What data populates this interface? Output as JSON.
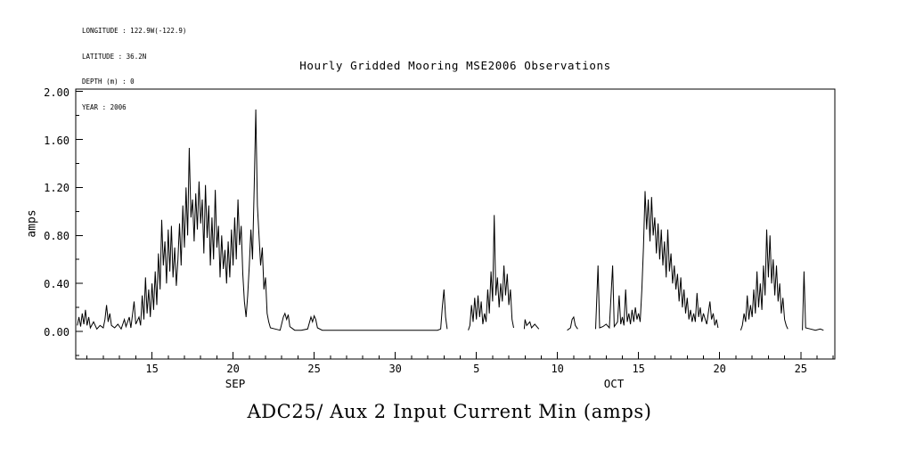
{
  "header": {
    "meta_lines": [
      "LONGITUDE : 122.9W(-122.9)",
      "LATITUDE : 36.2N",
      "DEPTH (m) : 0",
      "YEAR : 2006"
    ]
  },
  "title": "Hourly Gridded Mooring MSE2006 Observations",
  "footer_title": "ADC25/ Aux 2 Input Current Min (amps)",
  "chart_data": {
    "type": "line",
    "title": "Hourly Gridded Mooring MSE2006 Observations",
    "series_name": "ADC25/ Aux 2 Input Current Min (amps)",
    "ylabel": "amps",
    "line_color": "#000000",
    "grid": false,
    "legend": "none",
    "x_axis": {
      "unit": "days since 2006-09-01",
      "domain": [
        10.3,
        57.1
      ],
      "major_ticks": [
        {
          "day": 15,
          "label": "15"
        },
        {
          "day": 20,
          "label": "20"
        },
        {
          "day": 25,
          "label": "25"
        },
        {
          "day": 30,
          "label": "30"
        },
        {
          "day": 35,
          "label": "5"
        },
        {
          "day": 40,
          "label": "10"
        },
        {
          "day": 45,
          "label": "15"
        },
        {
          "day": 50,
          "label": "20"
        },
        {
          "day": 55,
          "label": "25"
        }
      ],
      "minor_tick_interval_days": 1,
      "month_labels": [
        {
          "day": 20.2,
          "label": "SEP"
        },
        {
          "day": 43.5,
          "label": "OCT"
        }
      ]
    },
    "y_axis": {
      "domain": [
        -0.23,
        2.02
      ],
      "major_ticks": [
        {
          "value": 0.0,
          "label": "0.00"
        },
        {
          "value": 0.4,
          "label": "0.40"
        },
        {
          "value": 0.8,
          "label": "0.80"
        },
        {
          "value": 1.2,
          "label": "1.20"
        },
        {
          "value": 1.6,
          "label": "1.60"
        },
        {
          "value": 2.0,
          "label": "2.00"
        }
      ],
      "minor_tick_interval": 0.2
    },
    "points": [
      [
        10.4,
        0.05
      ],
      [
        10.5,
        0.12
      ],
      [
        10.6,
        0.04
      ],
      [
        10.7,
        0.15
      ],
      [
        10.8,
        0.06
      ],
      [
        10.9,
        0.18
      ],
      [
        11.0,
        0.05
      ],
      [
        11.1,
        0.12
      ],
      [
        11.2,
        0.03
      ],
      [
        11.4,
        0.08
      ],
      [
        11.6,
        0.02
      ],
      [
        11.8,
        0.05
      ],
      [
        12.0,
        0.03
      ],
      [
        12.1,
        0.1
      ],
      [
        12.2,
        0.22
      ],
      [
        12.3,
        0.08
      ],
      [
        12.4,
        0.15
      ],
      [
        12.5,
        0.05
      ],
      [
        12.7,
        0.03
      ],
      [
        12.9,
        0.06
      ],
      [
        13.1,
        0.02
      ],
      [
        13.3,
        0.1
      ],
      [
        13.4,
        0.04
      ],
      [
        13.6,
        0.12
      ],
      [
        13.7,
        0.03
      ],
      [
        13.9,
        0.25
      ],
      [
        14.0,
        0.06
      ],
      [
        14.2,
        0.12
      ],
      [
        14.3,
        0.05
      ],
      [
        14.4,
        0.3
      ],
      [
        14.5,
        0.1
      ],
      [
        14.6,
        0.45
      ],
      [
        14.7,
        0.15
      ],
      [
        14.8,
        0.35
      ],
      [
        14.9,
        0.12
      ],
      [
        15.0,
        0.4
      ],
      [
        15.1,
        0.18
      ],
      [
        15.2,
        0.5
      ],
      [
        15.3,
        0.22
      ],
      [
        15.4,
        0.65
      ],
      [
        15.5,
        0.35
      ],
      [
        15.6,
        0.93
      ],
      [
        15.7,
        0.55
      ],
      [
        15.8,
        0.75
      ],
      [
        15.9,
        0.4
      ],
      [
        16.0,
        0.85
      ],
      [
        16.1,
        0.5
      ],
      [
        16.2,
        0.88
      ],
      [
        16.3,
        0.45
      ],
      [
        16.4,
        0.7
      ],
      [
        16.5,
        0.38
      ],
      [
        16.6,
        0.6
      ],
      [
        16.7,
        0.9
      ],
      [
        16.8,
        0.55
      ],
      [
        16.9,
        1.05
      ],
      [
        17.0,
        0.7
      ],
      [
        17.1,
        1.2
      ],
      [
        17.2,
        0.8
      ],
      [
        17.3,
        1.53
      ],
      [
        17.4,
        0.95
      ],
      [
        17.5,
        1.1
      ],
      [
        17.6,
        0.75
      ],
      [
        17.7,
        1.15
      ],
      [
        17.8,
        0.85
      ],
      [
        17.9,
        1.25
      ],
      [
        18.0,
        0.9
      ],
      [
        18.1,
        1.1
      ],
      [
        18.2,
        0.65
      ],
      [
        18.3,
        1.22
      ],
      [
        18.4,
        0.78
      ],
      [
        18.5,
        1.05
      ],
      [
        18.6,
        0.55
      ],
      [
        18.7,
        0.95
      ],
      [
        18.8,
        0.6
      ],
      [
        18.9,
        1.18
      ],
      [
        19.0,
        0.7
      ],
      [
        19.1,
        0.88
      ],
      [
        19.2,
        0.45
      ],
      [
        19.3,
        0.8
      ],
      [
        19.4,
        0.52
      ],
      [
        19.5,
        0.68
      ],
      [
        19.6,
        0.4
      ],
      [
        19.7,
        0.75
      ],
      [
        19.8,
        0.45
      ],
      [
        19.9,
        0.85
      ],
      [
        20.0,
        0.55
      ],
      [
        20.1,
        0.95
      ],
      [
        20.2,
        0.6
      ],
      [
        20.3,
        1.1
      ],
      [
        20.4,
        0.72
      ],
      [
        20.5,
        0.88
      ],
      [
        20.6,
        0.48
      ],
      [
        20.7,
        0.25
      ],
      [
        20.8,
        0.12
      ],
      [
        20.9,
        0.3
      ],
      [
        21.0,
        0.55
      ],
      [
        21.1,
        0.85
      ],
      [
        21.2,
        0.6
      ],
      [
        21.3,
        1.2
      ],
      [
        21.4,
        1.85
      ],
      [
        21.5,
        1.05
      ],
      [
        21.6,
        0.8
      ],
      [
        21.7,
        0.55
      ],
      [
        21.8,
        0.7
      ],
      [
        21.9,
        0.35
      ],
      [
        22.0,
        0.45
      ],
      [
        22.1,
        0.15
      ],
      [
        22.2,
        0.08
      ],
      [
        22.3,
        0.03
      ],
      [
        22.6,
        0.02
      ],
      [
        22.9,
        0.01
      ],
      [
        23.1,
        0.12
      ],
      [
        23.2,
        0.15
      ],
      [
        23.3,
        0.1
      ],
      [
        23.4,
        0.14
      ],
      [
        23.5,
        0.04
      ],
      [
        23.8,
        0.01
      ],
      [
        24.2,
        0.01
      ],
      [
        24.6,
        0.02
      ],
      [
        24.8,
        0.12
      ],
      [
        24.9,
        0.08
      ],
      [
        25.0,
        0.13
      ],
      [
        25.1,
        0.1
      ],
      [
        25.2,
        0.03
      ],
      [
        25.5,
        0.01
      ],
      [
        26.0,
        0.01
      ],
      [
        27.0,
        0.01
      ],
      [
        28.0,
        0.01
      ],
      [
        29.0,
        0.01
      ],
      [
        30.0,
        0.01
      ],
      [
        31.0,
        0.01
      ],
      [
        32.0,
        0.01
      ],
      [
        32.6,
        0.01
      ],
      [
        32.8,
        0.02
      ],
      [
        32.9,
        0.2
      ],
      [
        33.0,
        0.35
      ],
      [
        33.1,
        0.12
      ],
      [
        33.2,
        0.02
      ],
      null,
      [
        34.5,
        0.01
      ],
      [
        34.6,
        0.05
      ],
      [
        34.7,
        0.22
      ],
      [
        34.8,
        0.08
      ],
      [
        34.9,
        0.28
      ],
      [
        35.0,
        0.1
      ],
      [
        35.1,
        0.3
      ],
      [
        35.2,
        0.12
      ],
      [
        35.3,
        0.25
      ],
      [
        35.4,
        0.06
      ],
      [
        35.5,
        0.15
      ],
      [
        35.6,
        0.08
      ],
      [
        35.7,
        0.35
      ],
      [
        35.8,
        0.15
      ],
      [
        35.9,
        0.5
      ],
      [
        36.0,
        0.25
      ],
      [
        36.1,
        0.97
      ],
      [
        36.2,
        0.3
      ],
      [
        36.3,
        0.45
      ],
      [
        36.4,
        0.2
      ],
      [
        36.5,
        0.4
      ],
      [
        36.6,
        0.25
      ],
      [
        36.7,
        0.55
      ],
      [
        36.8,
        0.3
      ],
      [
        36.9,
        0.48
      ],
      [
        37.0,
        0.22
      ],
      [
        37.1,
        0.35
      ],
      [
        37.2,
        0.1
      ],
      [
        37.3,
        0.03
      ],
      null,
      [
        37.95,
        0.02
      ],
      [
        38.0,
        0.1
      ],
      [
        38.1,
        0.05
      ],
      [
        38.3,
        0.08
      ],
      [
        38.4,
        0.03
      ],
      [
        38.6,
        0.06
      ],
      [
        38.85,
        0.02
      ],
      null,
      [
        40.6,
        0.01
      ],
      [
        40.8,
        0.03
      ],
      [
        40.9,
        0.1
      ],
      [
        41.0,
        0.12
      ],
      [
        41.1,
        0.05
      ],
      [
        41.25,
        0.02
      ],
      null,
      [
        42.35,
        0.02
      ],
      [
        42.5,
        0.55
      ],
      [
        42.6,
        0.03
      ],
      [
        42.8,
        0.04
      ],
      [
        43.0,
        0.06
      ],
      [
        43.2,
        0.03
      ],
      [
        43.4,
        0.55
      ],
      [
        43.5,
        0.04
      ],
      [
        43.7,
        0.08
      ],
      [
        43.8,
        0.3
      ],
      [
        43.9,
        0.06
      ],
      [
        44.0,
        0.12
      ],
      [
        44.1,
        0.05
      ],
      [
        44.2,
        0.35
      ],
      [
        44.3,
        0.08
      ],
      [
        44.4,
        0.15
      ],
      [
        44.5,
        0.06
      ],
      [
        44.6,
        0.18
      ],
      [
        44.7,
        0.08
      ],
      [
        44.8,
        0.2
      ],
      [
        44.9,
        0.1
      ],
      [
        45.0,
        0.15
      ],
      [
        45.1,
        0.08
      ],
      [
        45.2,
        0.35
      ],
      [
        45.3,
        0.7
      ],
      [
        45.4,
        1.17
      ],
      [
        45.5,
        0.85
      ],
      [
        45.6,
        1.1
      ],
      [
        45.7,
        0.75
      ],
      [
        45.8,
        1.12
      ],
      [
        45.9,
        0.8
      ],
      [
        46.0,
        0.95
      ],
      [
        46.1,
        0.65
      ],
      [
        46.2,
        0.9
      ],
      [
        46.3,
        0.6
      ],
      [
        46.4,
        0.85
      ],
      [
        46.5,
        0.55
      ],
      [
        46.6,
        0.75
      ],
      [
        46.7,
        0.45
      ],
      [
        46.8,
        0.85
      ],
      [
        46.9,
        0.5
      ],
      [
        47.0,
        0.65
      ],
      [
        47.1,
        0.4
      ],
      [
        47.2,
        0.55
      ],
      [
        47.3,
        0.35
      ],
      [
        47.4,
        0.48
      ],
      [
        47.5,
        0.25
      ],
      [
        47.6,
        0.45
      ],
      [
        47.7,
        0.2
      ],
      [
        47.8,
        0.35
      ],
      [
        47.9,
        0.15
      ],
      [
        48.0,
        0.28
      ],
      [
        48.1,
        0.1
      ],
      [
        48.2,
        0.18
      ],
      [
        48.3,
        0.08
      ],
      [
        48.4,
        0.15
      ],
      [
        48.5,
        0.08
      ],
      [
        48.6,
        0.32
      ],
      [
        48.7,
        0.12
      ],
      [
        48.8,
        0.2
      ],
      [
        48.9,
        0.08
      ],
      [
        49.0,
        0.15
      ],
      [
        49.2,
        0.06
      ],
      [
        49.4,
        0.25
      ],
      [
        49.5,
        0.1
      ],
      [
        49.6,
        0.15
      ],
      [
        49.7,
        0.05
      ],
      [
        49.8,
        0.1
      ],
      [
        49.9,
        0.03
      ],
      null,
      [
        51.3,
        0.01
      ],
      [
        51.4,
        0.05
      ],
      [
        51.5,
        0.15
      ],
      [
        51.6,
        0.08
      ],
      [
        51.7,
        0.3
      ],
      [
        51.8,
        0.1
      ],
      [
        51.9,
        0.22
      ],
      [
        52.0,
        0.12
      ],
      [
        52.1,
        0.35
      ],
      [
        52.2,
        0.15
      ],
      [
        52.3,
        0.5
      ],
      [
        52.4,
        0.2
      ],
      [
        52.5,
        0.4
      ],
      [
        52.6,
        0.18
      ],
      [
        52.7,
        0.55
      ],
      [
        52.8,
        0.3
      ],
      [
        52.9,
        0.85
      ],
      [
        53.0,
        0.45
      ],
      [
        53.1,
        0.8
      ],
      [
        53.2,
        0.4
      ],
      [
        53.3,
        0.6
      ],
      [
        53.4,
        0.3
      ],
      [
        53.5,
        0.55
      ],
      [
        53.6,
        0.25
      ],
      [
        53.7,
        0.4
      ],
      [
        53.8,
        0.15
      ],
      [
        53.9,
        0.28
      ],
      [
        54.0,
        0.1
      ],
      [
        54.1,
        0.05
      ],
      [
        54.2,
        0.02
      ],
      null,
      [
        55.1,
        0.01
      ],
      [
        55.2,
        0.5
      ],
      [
        55.3,
        0.03
      ],
      [
        55.6,
        0.02
      ],
      [
        55.9,
        0.01
      ],
      [
        56.2,
        0.02
      ],
      [
        56.4,
        0.01
      ]
    ]
  }
}
